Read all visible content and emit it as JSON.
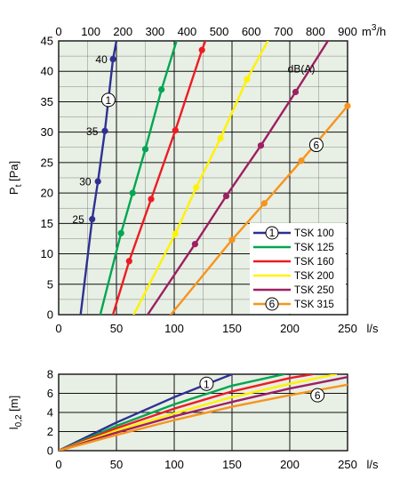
{
  "chart_data": [
    {
      "type": "line",
      "xlabel": "l/s",
      "ylabel": "P",
      "ylabel_sub": "t",
      "ylabel_unit": "[Pa]",
      "x2label": "m",
      "x2label_sup": "3",
      "x2label_suffix": "/h",
      "xlim": [
        0,
        250
      ],
      "ylim": [
        0,
        45
      ],
      "x2lim": [
        0,
        900
      ],
      "xticks": [
        "0",
        "50",
        "100",
        "150",
        "200",
        "250"
      ],
      "yticks": [
        "0",
        "5",
        "10",
        "15",
        "20",
        "25",
        "30",
        "35",
        "40",
        "45"
      ],
      "x2ticks": [
        "0",
        "100",
        "200",
        "300",
        "400",
        "500",
        "600",
        "700",
        "800",
        "900"
      ],
      "grid": true,
      "legend_position": "bottom-right",
      "series": [
        {
          "name": "TSK 100",
          "marker": "1",
          "color": "#2e3192",
          "points": [
            [
              19,
              0
            ],
            [
              29,
              15.7
            ],
            [
              34,
              21.9
            ],
            [
              40,
              30.2
            ],
            [
              47,
              42
            ],
            [
              50,
              45
            ]
          ],
          "dots": [
            [
              29,
              15.7
            ],
            [
              34,
              21.9
            ],
            [
              40,
              30.2
            ],
            [
              47,
              42
            ]
          ]
        },
        {
          "name": "TSK 125",
          "color": "#00a651",
          "points": [
            [
              36,
              0
            ],
            [
              54,
              13.4
            ],
            [
              64,
              20
            ],
            [
              75,
              27.2
            ],
            [
              89,
              37
            ],
            [
              102,
              45
            ]
          ],
          "dots": [
            [
              54,
              13.4
            ],
            [
              64,
              20
            ],
            [
              75,
              27.2
            ],
            [
              89,
              37
            ]
          ]
        },
        {
          "name": "TSK 160",
          "color": "#ed1c24",
          "points": [
            [
              47,
              0
            ],
            [
              61,
              8.8
            ],
            [
              80,
              19
            ],
            [
              101,
              30.3
            ],
            [
              124,
              43.5
            ],
            [
              127,
              45
            ]
          ],
          "dots": [
            [
              61,
              8.8
            ],
            [
              80,
              19
            ],
            [
              101,
              30.3
            ],
            [
              124,
              43.5
            ]
          ]
        },
        {
          "name": "TSK 200",
          "color": "#fff200",
          "points": [
            [
              65,
              0
            ],
            [
              101,
              13.3
            ],
            [
              119,
              20.9
            ],
            [
              140,
              29
            ],
            [
              163,
              38.7
            ],
            [
              181,
              45
            ]
          ],
          "dots": [
            [
              101,
              13.3
            ],
            [
              119,
              20.9
            ],
            [
              140,
              29
            ],
            [
              163,
              38.7
            ]
          ]
        },
        {
          "name": "TSK 250",
          "color": "#9e1f63",
          "points": [
            [
              77,
              0
            ],
            [
              118,
              11.6
            ],
            [
              145,
              19.5
            ],
            [
              175,
              27.8
            ],
            [
              205,
              36.6
            ],
            [
              233,
              45
            ]
          ],
          "dots": [
            [
              118,
              11.6
            ],
            [
              145,
              19.5
            ],
            [
              175,
              27.8
            ],
            [
              205,
              36.6
            ]
          ]
        },
        {
          "name": "TSK 315",
          "marker": "6",
          "color": "#f7941d",
          "points": [
            [
              97,
              0
            ],
            [
              150,
              12.3
            ],
            [
              178,
              18.3
            ],
            [
              210,
              25.3
            ],
            [
              250,
              34.3
            ]
          ],
          "dots": [
            [
              150,
              12.3
            ],
            [
              178,
              18.3
            ],
            [
              210,
              25.3
            ],
            [
              250,
              34.3
            ]
          ]
        }
      ],
      "annotations": [
        {
          "text": "40",
          "x": 37,
          "y": 42
        },
        {
          "text": "35",
          "x": 29,
          "y": 30.2
        },
        {
          "text": "30",
          "x": 23,
          "y": 21.9
        },
        {
          "text": "25",
          "x": 17,
          "y": 15.7
        },
        {
          "text": "dB(A)",
          "x": 210,
          "y": 40.5
        },
        {
          "marker": "1",
          "x": 43,
          "y": 35.3
        },
        {
          "marker": "6",
          "x": 223,
          "y": 27.9
        }
      ]
    },
    {
      "type": "line",
      "xlabel": "l/s",
      "ylabel": "l",
      "ylabel_sub": "0,2",
      "ylabel_unit": "[m]",
      "xlim": [
        0,
        250
      ],
      "ylim": [
        0,
        8
      ],
      "xticks": [
        "0",
        "50",
        "100",
        "150",
        "200",
        "250"
      ],
      "yticks": [
        "0",
        "2",
        "4",
        "6",
        "8"
      ],
      "grid": true,
      "series": [
        {
          "name": "TSK 100",
          "color": "#2e3192",
          "points": [
            [
              0,
              0
            ],
            [
              50,
              2.95
            ],
            [
              100,
              5.6
            ],
            [
              150,
              8
            ]
          ]
        },
        {
          "name": "TSK 125",
          "color": "#00a651",
          "points": [
            [
              0,
              0
            ],
            [
              50,
              2.6
            ],
            [
              100,
              4.85
            ],
            [
              150,
              6.8
            ],
            [
              195,
              8
            ]
          ]
        },
        {
          "name": "TSK 160",
          "color": "#ed1c24",
          "points": [
            [
              0,
              0
            ],
            [
              50,
              2.35
            ],
            [
              100,
              4.4
            ],
            [
              150,
              6.2
            ],
            [
              200,
              7.6
            ],
            [
              220,
              8
            ]
          ]
        },
        {
          "name": "TSK 200",
          "color": "#fff200",
          "points": [
            [
              0,
              0
            ],
            [
              50,
              2.1
            ],
            [
              100,
              3.9
            ],
            [
              150,
              5.6
            ],
            [
              200,
              7.0
            ],
            [
              240,
              8
            ]
          ]
        },
        {
          "name": "TSK 250",
          "color": "#9e1f63",
          "points": [
            [
              0,
              0
            ],
            [
              50,
              1.9
            ],
            [
              100,
              3.6
            ],
            [
              150,
              5.1
            ],
            [
              200,
              6.5
            ],
            [
              250,
              7.7
            ]
          ]
        },
        {
          "name": "TSK 315",
          "color": "#f7941d",
          "points": [
            [
              0,
              0
            ],
            [
              50,
              1.65
            ],
            [
              100,
              3.2
            ],
            [
              150,
              4.6
            ],
            [
              200,
              5.8
            ],
            [
              250,
              6.9
            ]
          ]
        }
      ],
      "annotations": [
        {
          "marker": "1",
          "x": 128,
          "y": 7.0
        },
        {
          "marker": "6",
          "x": 224,
          "y": 5.8
        }
      ]
    }
  ]
}
